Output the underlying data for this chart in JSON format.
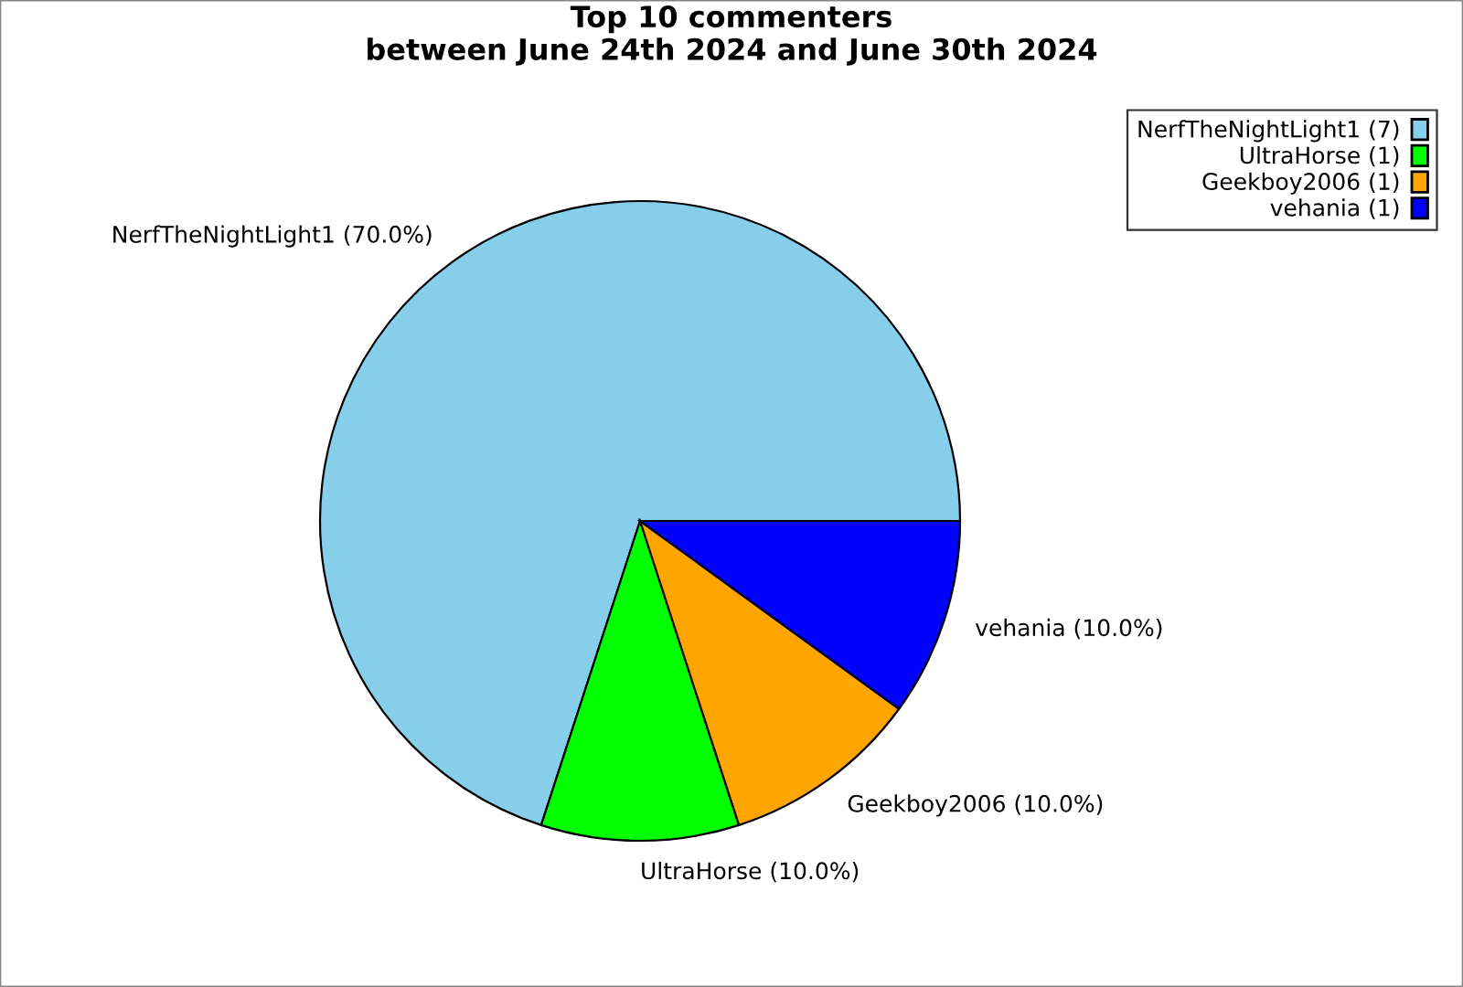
{
  "chart_data": {
    "type": "pie",
    "title": "Top 10 commenters\nbetween June 24th 2024 and June 30th 2024",
    "categories": [
      "NerfTheNightLight1 (7)",
      "UltraHorse (1)",
      "Geekboy2006 (1)",
      "vehania (1)"
    ],
    "values": [
      70,
      10,
      10,
      10
    ],
    "value_labels": [
      "NerfTheNightLight1 (70.0%)",
      "UltraHorse (10.0%)",
      "Geekboy2006 (10.0%)",
      "vehania (10.0%)"
    ],
    "colors": [
      "#87ceeb",
      "#00ff00",
      "#ffa500",
      "#0000ff"
    ],
    "legend": "top right"
  }
}
